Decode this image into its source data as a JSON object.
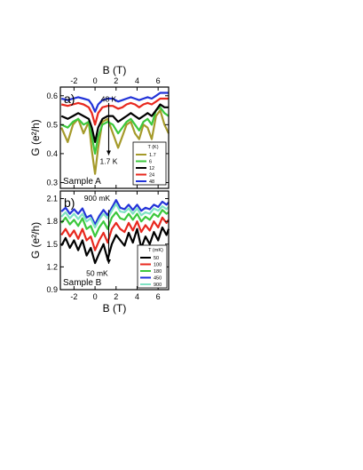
{
  "chart_data": [
    {
      "type": "line",
      "panel_label": "a)",
      "sample_label": "Sample A",
      "xlabel": "B (T)",
      "ylabel": "G (e²/h)",
      "xlim": [
        -3.3,
        7
      ],
      "ylim": [
        0.28,
        0.63
      ],
      "xticks": [
        -2,
        0,
        2,
        4,
        6
      ],
      "yticks": [
        0.3,
        0.4,
        0.5,
        0.6
      ],
      "ytick_labels": [
        "0.3",
        "0.4",
        "0.5",
        "0.6"
      ],
      "legend_title": "T (K)",
      "legend_position": "bottom-right",
      "annotations": [
        {
          "text": "48 K",
          "x": 1.3,
          "y": 0.58
        },
        {
          "text": "1.7 K",
          "x": 1.3,
          "y": 0.365
        }
      ],
      "arrow": {
        "x": 1.3,
        "y_from": 0.575,
        "y_to": 0.395
      },
      "series": [
        {
          "name": "1.7",
          "color": "#a59a2a",
          "x": [
            -3.2,
            -2.6,
            -2.1,
            -1.6,
            -1.1,
            -0.6,
            -0.3,
            0,
            0.3,
            0.7,
            1.2,
            1.7,
            2.2,
            2.6,
            3,
            3.4,
            3.8,
            4.2,
            4.6,
            5,
            5.4,
            5.8,
            6.2,
            6.6,
            7
          ],
          "y": [
            0.49,
            0.44,
            0.5,
            0.52,
            0.47,
            0.51,
            0.41,
            0.33,
            0.42,
            0.51,
            0.52,
            0.47,
            0.42,
            0.46,
            0.5,
            0.51,
            0.47,
            0.45,
            0.5,
            0.49,
            0.45,
            0.53,
            0.55,
            0.5,
            0.47
          ]
        },
        {
          "name": "6",
          "color": "#3cc83c",
          "x": [
            -3.2,
            -2.6,
            -2.1,
            -1.6,
            -1.1,
            -0.6,
            -0.3,
            0,
            0.3,
            0.7,
            1.2,
            1.7,
            2.2,
            2.6,
            3,
            3.4,
            3.8,
            4.2,
            4.6,
            5,
            5.4,
            5.8,
            6.2,
            6.6,
            7
          ],
          "y": [
            0.5,
            0.49,
            0.51,
            0.52,
            0.5,
            0.51,
            0.46,
            0.4,
            0.46,
            0.5,
            0.51,
            0.5,
            0.47,
            0.49,
            0.51,
            0.52,
            0.5,
            0.48,
            0.51,
            0.52,
            0.5,
            0.55,
            0.56,
            0.54,
            0.53
          ]
        },
        {
          "name": "12",
          "color": "#000000",
          "x": [
            -3.2,
            -2.6,
            -2.1,
            -1.6,
            -1.1,
            -0.6,
            -0.3,
            0,
            0.3,
            0.7,
            1.2,
            1.7,
            2.2,
            2.6,
            3,
            3.4,
            3.8,
            4.2,
            4.6,
            5,
            5.4,
            5.8,
            6.2,
            6.6,
            7
          ],
          "y": [
            0.53,
            0.52,
            0.53,
            0.54,
            0.53,
            0.52,
            0.49,
            0.44,
            0.49,
            0.52,
            0.53,
            0.53,
            0.51,
            0.52,
            0.53,
            0.54,
            0.53,
            0.52,
            0.53,
            0.54,
            0.53,
            0.55,
            0.57,
            0.56,
            0.56
          ]
        },
        {
          "name": "24",
          "color": "#e8281e",
          "x": [
            -3.2,
            -2.6,
            -2.1,
            -1.6,
            -1.1,
            -0.6,
            -0.3,
            0,
            0.3,
            0.7,
            1.2,
            1.7,
            2.2,
            2.6,
            3,
            3.4,
            3.8,
            4.2,
            4.6,
            5,
            5.4,
            5.8,
            6.2,
            6.6,
            7
          ],
          "y": [
            0.57,
            0.565,
            0.57,
            0.575,
            0.57,
            0.56,
            0.54,
            0.5,
            0.54,
            0.56,
            0.565,
            0.565,
            0.555,
            0.56,
            0.57,
            0.575,
            0.57,
            0.56,
            0.57,
            0.575,
            0.57,
            0.58,
            0.59,
            0.59,
            0.59
          ]
        },
        {
          "name": "48",
          "color": "#2233d8",
          "x": [
            -3.2,
            -2.6,
            -2.1,
            -1.6,
            -1.1,
            -0.6,
            -0.3,
            0,
            0.3,
            0.7,
            1.2,
            1.7,
            2.2,
            2.6,
            3,
            3.4,
            3.8,
            4.2,
            4.6,
            5,
            5.4,
            5.8,
            6.2,
            6.6,
            7
          ],
          "y": [
            0.59,
            0.585,
            0.59,
            0.595,
            0.59,
            0.585,
            0.57,
            0.545,
            0.57,
            0.585,
            0.59,
            0.59,
            0.58,
            0.585,
            0.59,
            0.595,
            0.59,
            0.585,
            0.59,
            0.595,
            0.59,
            0.6,
            0.61,
            0.61,
            0.61
          ]
        }
      ]
    },
    {
      "type": "line",
      "panel_label": "b)",
      "sample_label": "Sample B",
      "xlabel": "B (T)",
      "ylabel": "G (e²/h)",
      "xlim": [
        -3.3,
        7
      ],
      "ylim": [
        0.9,
        2.2
      ],
      "xticks": [
        -2,
        0,
        2,
        4,
        6
      ],
      "yticks": [
        0.9,
        1.2,
        1.5,
        1.8,
        2.1
      ],
      "ytick_labels": [
        "0.9",
        "1.2",
        "1.5",
        "1.8",
        "2.1"
      ],
      "legend_title": "T (mK)",
      "legend_position": "bottom-right",
      "annotations": [
        {
          "text": "900 mK",
          "x": 0.2,
          "y": 2.07
        },
        {
          "text": "50 mK",
          "x": 0.2,
          "y": 1.08
        }
      ],
      "arrow": {
        "x": 1.3,
        "y_from": 1.95,
        "y_to": 1.24
      },
      "series": [
        {
          "name": "50",
          "color": "#000000",
          "x": [
            -3.2,
            -2.8,
            -2.4,
            -2,
            -1.6,
            -1.2,
            -0.8,
            -0.4,
            0,
            0.4,
            0.8,
            1.2,
            1.6,
            2,
            2.4,
            2.8,
            3.2,
            3.6,
            4,
            4.4,
            4.8,
            5.2,
            5.6,
            6,
            6.4,
            6.8,
            7
          ],
          "y": [
            1.48,
            1.58,
            1.45,
            1.55,
            1.42,
            1.55,
            1.35,
            1.45,
            1.25,
            1.38,
            1.5,
            1.3,
            1.5,
            1.62,
            1.55,
            1.48,
            1.65,
            1.52,
            1.7,
            1.45,
            1.6,
            1.5,
            1.66,
            1.55,
            1.72,
            1.62,
            1.7
          ]
        },
        {
          "name": "100",
          "color": "#e8281e",
          "x": [
            -3.2,
            -2.8,
            -2.4,
            -2,
            -1.6,
            -1.2,
            -0.8,
            -0.4,
            0,
            0.4,
            0.8,
            1.2,
            1.6,
            2,
            2.4,
            2.8,
            3.2,
            3.6,
            4,
            4.4,
            4.8,
            5.2,
            5.6,
            6,
            6.4,
            6.8,
            7
          ],
          "y": [
            1.62,
            1.7,
            1.6,
            1.68,
            1.57,
            1.7,
            1.55,
            1.6,
            1.42,
            1.55,
            1.65,
            1.52,
            1.7,
            1.78,
            1.7,
            1.66,
            1.78,
            1.68,
            1.8,
            1.66,
            1.75,
            1.68,
            1.8,
            1.72,
            1.85,
            1.78,
            1.82
          ]
        },
        {
          "name": "180",
          "color": "#3cc83c",
          "x": [
            -3.2,
            -2.8,
            -2.4,
            -2,
            -1.6,
            -1.2,
            -0.8,
            -0.4,
            0,
            0.4,
            0.8,
            1.2,
            1.6,
            2,
            2.4,
            2.8,
            3.2,
            3.6,
            4,
            4.4,
            4.8,
            5.2,
            5.6,
            6,
            6.4,
            6.8,
            7
          ],
          "y": [
            1.78,
            1.85,
            1.76,
            1.82,
            1.74,
            1.84,
            1.7,
            1.74,
            1.6,
            1.72,
            1.8,
            1.7,
            1.85,
            1.92,
            1.84,
            1.82,
            1.9,
            1.82,
            1.9,
            1.8,
            1.86,
            1.82,
            1.9,
            1.86,
            1.95,
            1.9,
            1.92
          ]
        },
        {
          "name": "450",
          "color": "#2233d8",
          "x": [
            -3.2,
            -2.8,
            -2.4,
            -2,
            -1.6,
            -1.2,
            -0.8,
            -0.4,
            0,
            0.4,
            0.8,
            1.2,
            1.6,
            2,
            2.4,
            2.8,
            3.2,
            3.6,
            4,
            4.4,
            4.8,
            5.2,
            5.6,
            6,
            6.4,
            6.8,
            7
          ],
          "y": [
            1.93,
            1.98,
            1.9,
            1.96,
            1.9,
            1.97,
            1.85,
            1.88,
            1.76,
            1.87,
            1.95,
            1.88,
            1.98,
            2.08,
            1.98,
            1.96,
            2.02,
            1.95,
            2.02,
            1.94,
            1.98,
            1.96,
            2.02,
            1.99,
            2.06,
            2.02,
            2.05
          ]
        },
        {
          "name": "900",
          "color": "#7fe3c4",
          "x": [
            -3.2,
            -2.8,
            -2.4,
            -2,
            -1.6,
            -1.2,
            -0.8,
            -0.4,
            0,
            0.4,
            0.8,
            1.2,
            1.6,
            2,
            2.4,
            2.8,
            3.2,
            3.6,
            4,
            4.4,
            4.8,
            5.2,
            5.6,
            6,
            6.4,
            6.8,
            7
          ],
          "y": [
            1.86,
            1.92,
            1.84,
            1.9,
            1.83,
            1.9,
            1.8,
            1.84,
            1.72,
            1.82,
            1.9,
            1.84,
            1.94,
            2.03,
            1.93,
            1.92,
            1.97,
            1.9,
            1.97,
            1.88,
            1.92,
            1.9,
            1.97,
            1.94,
            2.0,
            1.96,
            1.99
          ]
        }
      ]
    }
  ]
}
